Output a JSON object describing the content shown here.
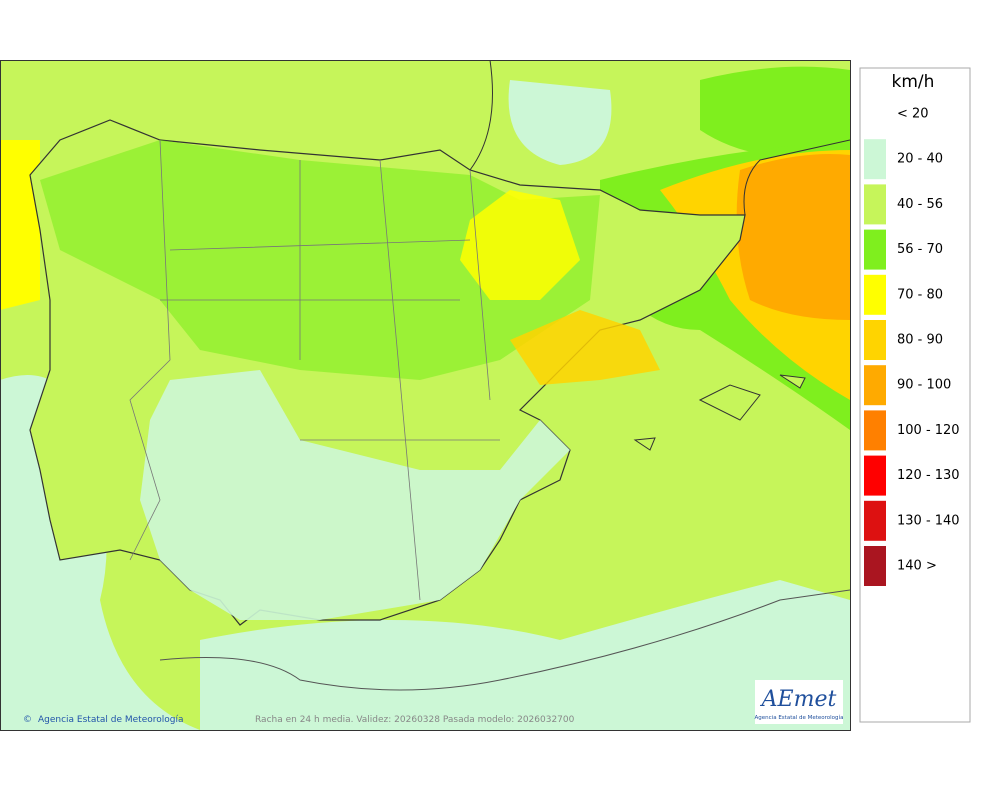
{
  "legend": {
    "unit": "km/h",
    "items": [
      {
        "label": "< 20",
        "color": "#ffffff"
      },
      {
        "label": "20 - 40",
        "color": "#ccf7d6"
      },
      {
        "label": "40 - 56",
        "color": "#c6f55a"
      },
      {
        "label": "56 - 70",
        "color": "#7fef1e"
      },
      {
        "label": "70 - 80",
        "color": "#ffff00"
      },
      {
        "label": "80 - 90",
        "color": "#ffd400"
      },
      {
        "label": "90 - 100",
        "color": "#ffaa00"
      },
      {
        "label": "100 - 120",
        "color": "#ff8000"
      },
      {
        "label": "120 - 130",
        "color": "#ff0000"
      },
      {
        "label": "130 - 140",
        "color": "#dd1111"
      },
      {
        "label": "140 >",
        "color": "#aa1520"
      }
    ]
  },
  "footer": {
    "credit": "Agencia Estatal de Meteorología",
    "caption": "Racha en 24 h media. Validez: 20260328 Pasada modelo: 2026032700"
  },
  "logo": {
    "name": "AEmet",
    "subtitle": "Agencia Estatal de Meteorología"
  }
}
